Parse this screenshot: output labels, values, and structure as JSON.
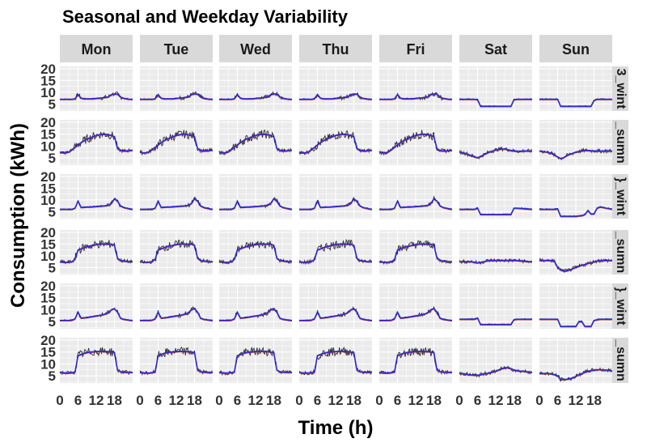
{
  "chart_data": {
    "type": "line",
    "title": "Seasonal and Weekday Variability",
    "xlabel": "Time (h)",
    "ylabel": "Consumption (kWh)",
    "xlim": [
      0,
      24
    ],
    "ylim": [
      2,
      21
    ],
    "x_ticks": [
      0,
      6,
      12,
      18
    ],
    "x_tick_labels": [
      "0",
      "6",
      "12",
      "18"
    ],
    "y_ticks": [
      5,
      10,
      15,
      20
    ],
    "y_tick_labels": [
      "5",
      "10",
      "15",
      "20"
    ],
    "grid": true,
    "facet_columns": [
      "Mon",
      "Tue",
      "Wed",
      "Thu",
      "Fri",
      "Sat",
      "Sun"
    ],
    "facet_rows": [
      "3_wint",
      "_sumn",
      "}_wint",
      "_sumn",
      "}_wint",
      "_sumn"
    ],
    "series_colors": {
      "mean": "#2b2bd6",
      "noise": "#2a2a2a",
      "median": "#c0392b"
    },
    "x": [
      0,
      1,
      2,
      3,
      4,
      5,
      6,
      7,
      8,
      9,
      10,
      11,
      12,
      13,
      14,
      15,
      16,
      17,
      18,
      19,
      20,
      21,
      22,
      23,
      24
    ],
    "panels": {
      "winter_weekday": [
        7,
        7,
        7,
        7,
        7,
        7.2,
        9,
        7.5,
        7.2,
        7.2,
        7.2,
        7.2,
        7.4,
        7.5,
        7.6,
        7.8,
        8,
        9,
        9.3,
        9.2,
        8,
        7.4,
        7.2,
        7,
        7
      ],
      "winter_saturday": [
        7,
        7,
        7,
        7,
        7,
        7,
        6.8,
        4,
        4,
        4,
        4,
        4,
        4,
        4,
        4,
        4,
        4,
        4,
        6.8,
        7,
        7,
        7,
        7,
        7,
        7
      ],
      "winter_sunday": [
        7,
        7,
        7,
        7,
        7,
        7,
        7,
        4,
        4,
        4,
        4,
        4,
        4,
        4,
        4,
        4,
        4,
        4,
        6.5,
        7,
        7,
        7,
        7,
        7,
        7
      ],
      "summer1_weekday": [
        7.5,
        7.2,
        7.2,
        7.6,
        8.5,
        9.5,
        10.5,
        11.5,
        12.3,
        13,
        13.5,
        14,
        14.5,
        14.8,
        15,
        15,
        14.8,
        14.5,
        14,
        9,
        8.2,
        8,
        8,
        8.2,
        8.3
      ],
      "summer1_saturday": [
        7.5,
        7.2,
        7,
        6.5,
        6,
        5.5,
        5.2,
        5.6,
        6.4,
        7,
        7.6,
        8,
        8.4,
        8.7,
        8.8,
        8.8,
        8.5,
        8.2,
        8,
        7.9,
        7.8,
        8,
        8,
        7.9,
        8
      ],
      "summer1_sunday": [
        8,
        7.8,
        7.6,
        7.4,
        7,
        6.2,
        5.5,
        4.8,
        5.2,
        6,
        6.6,
        7,
        7.5,
        7.8,
        8,
        8.2,
        8.2,
        8.1,
        8,
        8,
        7.9,
        8,
        8,
        8,
        8
      ],
      "winter2_weekday": [
        6,
        6,
        6,
        6,
        6,
        6.5,
        9.5,
        6.8,
        6.9,
        7,
        7,
        7.1,
        7.2,
        7.3,
        7.4,
        7.5,
        7.7,
        8.5,
        10.5,
        9.5,
        7.5,
        6.8,
        6.5,
        6.2,
        6
      ],
      "winter2_saturday": [
        6,
        6,
        6,
        6,
        6,
        6,
        6.5,
        3.8,
        3.8,
        3.8,
        3.8,
        3.8,
        3.8,
        3.8,
        3.8,
        3.8,
        3.8,
        3.8,
        6.5,
        6.5,
        6.4,
        6.3,
        6.2,
        6.1,
        6
      ],
      "winter2_sunday": [
        6,
        6,
        6,
        6,
        6,
        6,
        6.2,
        3,
        3,
        3,
        3,
        3,
        3,
        3.2,
        3.3,
        3.8,
        5.5,
        4,
        4,
        6.5,
        7,
        6.8,
        6.5,
        6.3,
        6
      ],
      "summer2_weekday": [
        7.5,
        7.3,
        7.2,
        7.3,
        7.5,
        8.5,
        12.5,
        13,
        13.5,
        14,
        14.2,
        14.5,
        14.8,
        15,
        15.1,
        15,
        15,
        15,
        14.5,
        9,
        8,
        7.8,
        7.6,
        7.5,
        7.5
      ],
      "summer2_saturday": [
        7.5,
        7.5,
        7.5,
        7.5,
        7.5,
        7.2,
        7,
        7.2,
        7.5,
        7.8,
        8,
        8,
        8,
        8,
        8,
        8,
        8,
        8,
        8,
        8,
        7.8,
        7.8,
        7.6,
        7.5,
        7.5
      ],
      "summer2_sunday": [
        8,
        8,
        8,
        8,
        8,
        7.5,
        5,
        4,
        3.5,
        3.6,
        4,
        4.5,
        5,
        5.5,
        6,
        6.3,
        6.8,
        7,
        7.5,
        7.8,
        8,
        8,
        8,
        8,
        8
      ],
      "winter3_weekday": [
        5.5,
        5.5,
        5.5,
        5.5,
        5.6,
        6.2,
        9,
        6.5,
        6.6,
        6.8,
        7,
        7.2,
        7.4,
        7.6,
        7.8,
        8.2,
        8.8,
        10,
        10.5,
        9,
        6.5,
        6,
        5.8,
        5.6,
        5.5
      ],
      "winter3_saturday": [
        6,
        6,
        6,
        6,
        6,
        6,
        6.5,
        3.8,
        3.8,
        3.8,
        3.8,
        3.8,
        3.8,
        3.8,
        3.8,
        3.8,
        3.8,
        3.8,
        5.8,
        6,
        6,
        6,
        6,
        6,
        6
      ],
      "winter3_sunday": [
        6,
        6,
        6,
        6,
        6,
        6,
        6,
        3,
        3,
        3,
        3,
        3,
        3,
        5,
        5,
        3,
        3,
        3,
        5.5,
        5.8,
        6,
        6,
        6,
        6,
        6
      ],
      "summer3_weekday": [
        6.5,
        6.3,
        6.2,
        6.2,
        6.4,
        6.6,
        13.5,
        14,
        14.5,
        14.8,
        15,
        15.1,
        15.2,
        15.3,
        15.3,
        15.2,
        15.2,
        15,
        14.8,
        7.5,
        6.8,
        6.6,
        6.5,
        6.5,
        6.5
      ],
      "summer3_saturday": [
        6,
        6,
        5.8,
        5.5,
        5.4,
        5.3,
        5.3,
        5.5,
        5.8,
        6,
        6.3,
        6.6,
        7,
        7.5,
        8,
        8.3,
        8.5,
        8,
        7.5,
        7.2,
        7,
        7,
        6.8,
        6.7,
        6.5
      ],
      "summer3_sunday": [
        6,
        6,
        6,
        6,
        5.8,
        5.5,
        5,
        3.5,
        3.5,
        3.6,
        3.8,
        4.2,
        4.8,
        5.5,
        6,
        6.5,
        7,
        7.2,
        7.5,
        7.6,
        7.6,
        7.5,
        7.4,
        7.3,
        7.2
      ]
    },
    "grid_layout": [
      [
        "winter_weekday",
        "winter_weekday",
        "winter_weekday",
        "winter_weekday",
        "winter_weekday",
        "winter_saturday",
        "winter_sunday"
      ],
      [
        "summer1_weekday",
        "summer1_weekday",
        "summer1_weekday",
        "summer1_weekday",
        "summer1_weekday",
        "summer1_saturday",
        "summer1_sunday"
      ],
      [
        "winter2_weekday",
        "winter2_weekday",
        "winter2_weekday",
        "winter2_weekday",
        "winter2_weekday",
        "winter2_saturday",
        "winter2_sunday"
      ],
      [
        "summer2_weekday",
        "summer2_weekday",
        "summer2_weekday",
        "summer2_weekday",
        "summer2_weekday",
        "summer2_saturday",
        "summer2_sunday"
      ],
      [
        "winter3_weekday",
        "winter3_weekday",
        "winter3_weekday",
        "winter3_weekday",
        "winter3_weekday",
        "winter3_saturday",
        "winter3_sunday"
      ],
      [
        "summer3_weekday",
        "summer3_weekday",
        "summer3_weekday",
        "summer3_weekday",
        "summer3_weekday",
        "summer3_saturday",
        "summer3_sunday"
      ]
    ]
  }
}
